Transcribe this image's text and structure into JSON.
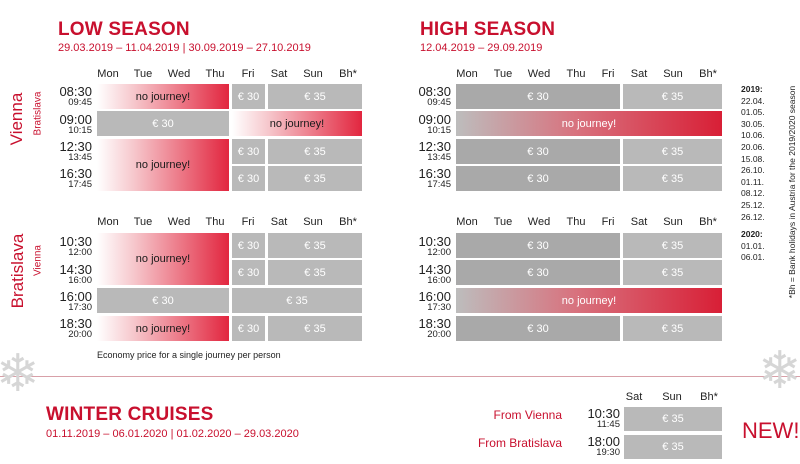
{
  "low_season": {
    "title": "LOW SEASON",
    "dates": "29.03.2019 – 11.04.2019 | 30.09.2019 – 27.10.2019"
  },
  "high_season": {
    "title": "HIGH SEASON",
    "dates": "12.04.2019 – 29.09.2019"
  },
  "winter": {
    "title": "WINTER CRUISES",
    "dates": "01.11.2019 – 06.01.2020 | 01.02.2020 – 29.03.2020",
    "from_vienna": "From Vienna",
    "from_bratislava": "From Bratislava",
    "t1": "10:30",
    "t1b": "11:45",
    "t2": "18:00",
    "t2b": "19:30",
    "new": "NEW!"
  },
  "days": [
    "Mon",
    "Tue",
    "Wed",
    "Thu",
    "Fri",
    "Sat",
    "Sun",
    "Bh*"
  ],
  "weekend_days": [
    "Sat",
    "Sun",
    "Bh*"
  ],
  "cities": {
    "vienna": "Vienna",
    "bratislava": "Bratislava"
  },
  "upstream_times": [
    [
      "08:30",
      "09:45"
    ],
    [
      "09:00",
      "10:15"
    ],
    [
      "12:30",
      "13:45"
    ],
    [
      "16:30",
      "17:45"
    ]
  ],
  "downstream_times": [
    [
      "10:30",
      "12:00"
    ],
    [
      "14:30",
      "16:00"
    ],
    [
      "16:00",
      "17:30"
    ],
    [
      "18:30",
      "20:00"
    ]
  ],
  "labels": {
    "no_journey": "no journey!",
    "p30": "€ 30",
    "p35": "€ 35"
  },
  "note": "Economy price for a single journey per person",
  "holidays": {
    "h2019": "2019:",
    "d2019": [
      "22.04.",
      "01.05.",
      "30.05.",
      "10.06.",
      "20.06.",
      "15.08.",
      "26.10.",
      "01.11.",
      "08.12.",
      "25.12.",
      "26.12."
    ],
    "h2020": "2020:",
    "d2020": [
      "01.01.",
      "06.01."
    ],
    "side": "*Bh = Bank holidays in Austria for the 2019/2020 season"
  },
  "colors": {
    "red": "#c8102e",
    "gray": "#b9b9b9"
  }
}
